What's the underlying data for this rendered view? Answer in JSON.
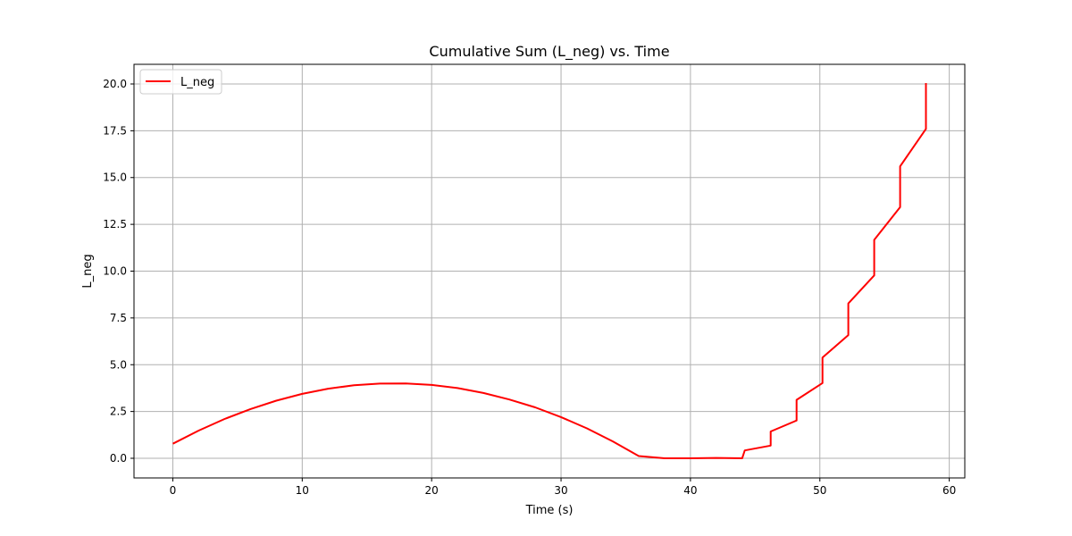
{
  "chart_data": {
    "type": "line",
    "title": "Cumulative Sum (L_neg) vs. Time",
    "xlabel": "Time (s)",
    "ylabel": "L_neg",
    "xlim": [
      -3,
      61.2
    ],
    "ylim": [
      -1.05,
      21.05
    ],
    "xticks": [
      0,
      10,
      20,
      30,
      40,
      50,
      60
    ],
    "xtick_labels": [
      "0",
      "10",
      "20",
      "30",
      "40",
      "50",
      "60"
    ],
    "yticks": [
      0,
      2.5,
      5,
      7.5,
      10,
      12.5,
      15,
      17.5,
      20
    ],
    "ytick_labels": [
      "0.0",
      "2.5",
      "5.0",
      "7.5",
      "10.0",
      "12.5",
      "15.0",
      "17.5",
      "20.0"
    ],
    "grid": true,
    "legend_position": "top-left",
    "series": [
      {
        "name": "L_neg",
        "color": "#ff0000",
        "x": [
          0,
          2,
          4,
          6,
          8,
          10,
          12,
          14,
          16,
          18,
          20,
          22,
          24,
          26,
          28,
          30,
          32,
          34,
          36,
          38,
          40,
          42,
          44,
          44.2,
          46.2,
          46.2,
          48.2,
          48.2,
          50.2,
          50.2,
          52.2,
          52.2,
          54.2,
          54.2,
          56.2,
          56.2,
          58.2,
          58.2
        ],
        "y": [
          0.78,
          1.48,
          2.1,
          2.63,
          3.08,
          3.44,
          3.72,
          3.9,
          3.99,
          4.0,
          3.92,
          3.75,
          3.49,
          3.14,
          2.72,
          2.2,
          1.6,
          0.9,
          0.12,
          0.0,
          0.0,
          0.02,
          0.0,
          0.42,
          0.68,
          1.43,
          2.02,
          3.12,
          4.02,
          5.38,
          6.58,
          8.27,
          9.77,
          11.67,
          13.42,
          15.6,
          17.6,
          20.05
        ]
      }
    ]
  }
}
